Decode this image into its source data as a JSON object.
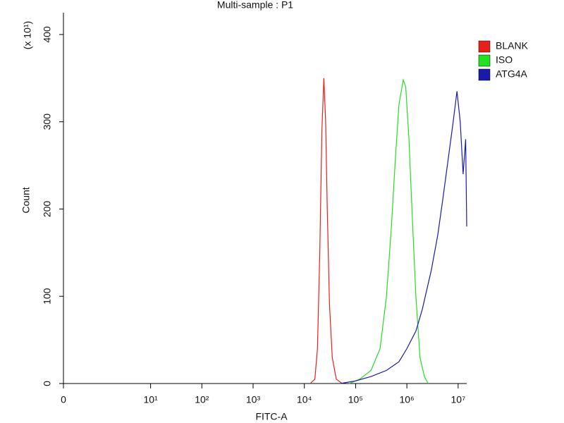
{
  "chart_data": {
    "type": "line",
    "title": "Multi-sample : P1",
    "x_label": "FITC-A",
    "y_label": "Count",
    "y_multiplier_label": "(x 10¹)",
    "xscale": "biexponential",
    "xlim": [
      0,
      14700000
    ],
    "ylim": [
      0,
      425
    ],
    "xticks": [
      0,
      {
        "value": 10,
        "label": "10¹"
      },
      {
        "value": 100,
        "label": "10²"
      },
      {
        "value": 1000,
        "label": "10³"
      },
      {
        "value": 10000,
        "label": "10⁴"
      },
      {
        "value": 100000,
        "label": "10⁵"
      },
      {
        "value": 1000000,
        "label": "10⁶"
      },
      {
        "value": 10000000,
        "label": "10⁷"
      }
    ],
    "yticks": [
      0,
      100,
      200,
      300,
      400
    ],
    "legend": "right",
    "series": [
      {
        "name": "BLANK",
        "color": "#e8201c",
        "x": [
          13000,
          16000,
          18000,
          20000,
          22000,
          24000,
          26000,
          28000,
          31000,
          35000,
          42000,
          55000
        ],
        "values": [
          0,
          5,
          40,
          150,
          290,
          350,
          300,
          200,
          90,
          30,
          5,
          0
        ]
      },
      {
        "name": "ISO",
        "color": "#22e022",
        "x": [
          75000,
          120000,
          200000,
          300000,
          400000,
          500000,
          600000,
          700000,
          850000,
          950000,
          1100000,
          1300000,
          1500000,
          1800000,
          2200000,
          2600000
        ],
        "values": [
          0,
          5,
          15,
          40,
          100,
          180,
          260,
          320,
          348,
          340,
          280,
          180,
          100,
          30,
          8,
          0
        ]
      },
      {
        "name": "ATG4A",
        "color": "#1a1aa8",
        "x": [
          50000,
          100000,
          200000,
          400000,
          700000,
          1000000,
          1500000,
          2000000,
          3000000,
          4000000,
          5000000,
          6500000,
          8000000,
          9500000,
          11000000,
          12500000,
          14000000,
          14700000
        ],
        "values": [
          0,
          3,
          8,
          15,
          25,
          40,
          60,
          85,
          130,
          170,
          210,
          260,
          300,
          335,
          300,
          240,
          280,
          180
        ]
      }
    ]
  }
}
